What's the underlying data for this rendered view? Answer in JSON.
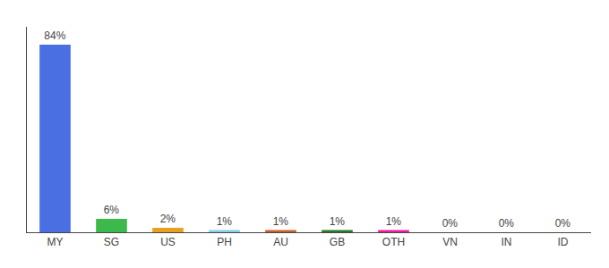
{
  "chart_data": {
    "type": "bar",
    "categories": [
      "MY",
      "SG",
      "US",
      "PH",
      "AU",
      "GB",
      "OTH",
      "VN",
      "IN",
      "ID"
    ],
    "values": [
      84,
      6,
      2,
      1,
      1,
      1,
      1,
      0,
      0,
      0
    ],
    "value_labels": [
      "84%",
      "6%",
      "2%",
      "1%",
      "1%",
      "1%",
      "1%",
      "0%",
      "0%",
      "0%"
    ],
    "colors": [
      "#4a6fe3",
      "#3cb94a",
      "#e8a020",
      "#87ceeb",
      "#c8622a",
      "#2a7a2a",
      "#e820a0",
      "#4a6fe3",
      "#4a6fe3",
      "#4a6fe3"
    ],
    "ylim": [
      0,
      92
    ],
    "grid": false,
    "data_labels": true,
    "tick_labels": "x"
  }
}
